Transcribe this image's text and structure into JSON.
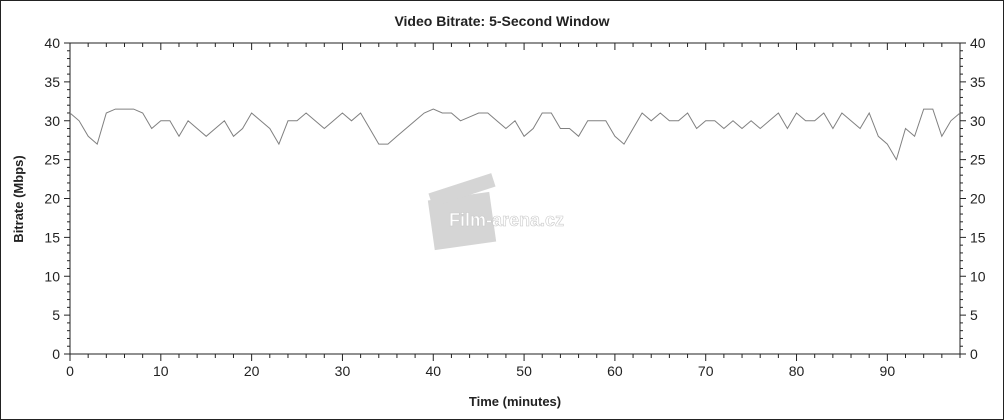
{
  "chart_data": {
    "type": "line",
    "title": "Video Bitrate: 5-Second Window",
    "xlabel": "Time (minutes)",
    "ylabel": "Bitrate (Mbps)",
    "xlim": [
      0,
      98
    ],
    "ylim": [
      0,
      40
    ],
    "xticks": [
      0,
      10,
      20,
      30,
      40,
      50,
      60,
      70,
      80,
      90
    ],
    "yticks": [
      0,
      5,
      10,
      15,
      20,
      25,
      30,
      35,
      40
    ],
    "right_axis_ticks": true,
    "grid": false,
    "line_color": "#808080",
    "watermark": "Film-arena.cz",
    "x": [
      0,
      1,
      2,
      3,
      4,
      5,
      6,
      7,
      8,
      9,
      10,
      11,
      12,
      13,
      14,
      15,
      16,
      17,
      18,
      19,
      20,
      21,
      22,
      23,
      24,
      25,
      26,
      27,
      28,
      29,
      30,
      31,
      32,
      33,
      34,
      35,
      36,
      37,
      38,
      39,
      40,
      41,
      42,
      43,
      44,
      45,
      46,
      47,
      48,
      49,
      50,
      51,
      52,
      53,
      54,
      55,
      56,
      57,
      58,
      59,
      60,
      61,
      62,
      63,
      64,
      65,
      66,
      67,
      68,
      69,
      70,
      71,
      72,
      73,
      74,
      75,
      76,
      77,
      78,
      79,
      80,
      81,
      82,
      83,
      84,
      85,
      86,
      87,
      88,
      89,
      90,
      91,
      92,
      93,
      94,
      95,
      96,
      97,
      98
    ],
    "values": [
      31,
      30,
      28,
      27,
      31,
      31.5,
      31.5,
      31.5,
      31,
      29,
      30,
      30,
      28,
      30,
      29,
      28,
      29,
      30,
      28,
      29,
      31,
      30,
      29,
      27,
      30,
      30,
      31,
      30,
      29,
      30,
      31,
      30,
      31,
      29,
      27,
      27,
      28,
      29,
      30,
      31,
      31.5,
      31,
      31,
      30,
      30.5,
      31,
      31,
      30,
      29,
      30,
      28,
      29,
      31,
      31,
      29,
      29,
      28,
      30,
      30,
      30,
      28,
      27,
      29,
      31,
      30,
      31,
      30,
      30,
      31,
      29,
      30,
      30,
      29,
      30,
      29,
      30,
      29,
      30,
      31,
      29,
      31,
      30,
      30,
      31,
      29,
      31,
      30,
      29,
      31,
      28,
      27,
      25,
      29,
      28,
      31.5,
      31.5,
      28,
      30,
      31
    ]
  }
}
